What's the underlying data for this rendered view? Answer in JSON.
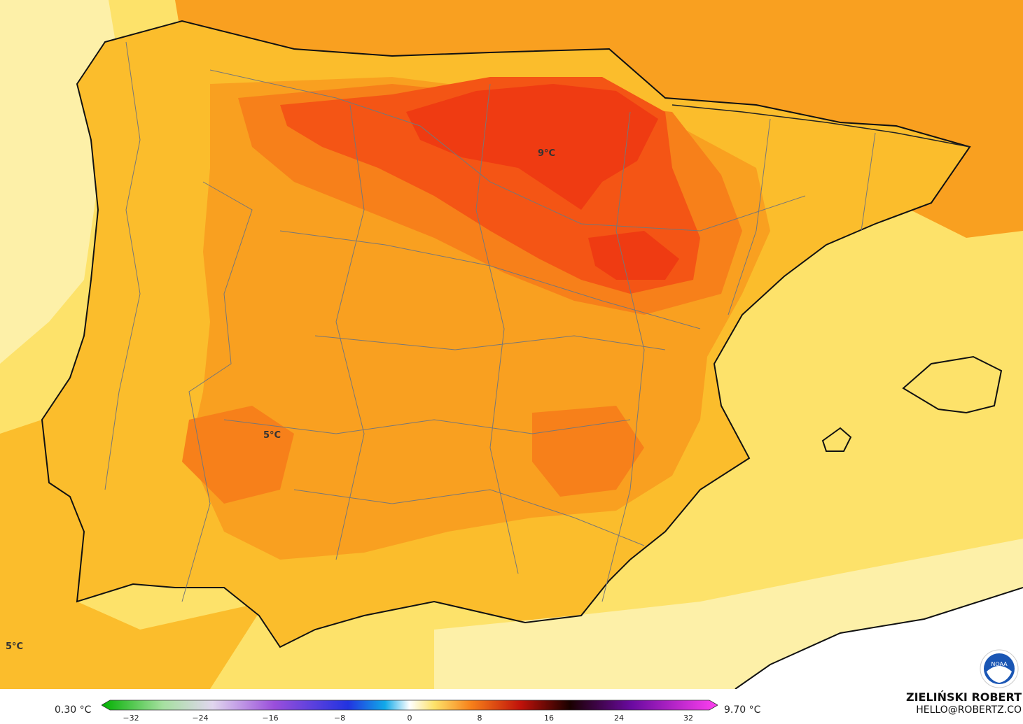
{
  "map": {
    "labels": {
      "max": "9°C",
      "mid": "5°C",
      "edge": "5°C"
    }
  },
  "colorbar": {
    "min_label": "0.30 °C",
    "max_label": "9.70 °C",
    "ticks": [
      "−32",
      "−24",
      "−16",
      "−8",
      "0",
      "8",
      "16",
      "24",
      "32"
    ]
  },
  "author": {
    "name": "ZIELIŃSKI ROBERT",
    "email": "HELLO@ROBERTZ.CO"
  },
  "logo": {
    "icon": "noaa-logo-icon",
    "text": "NOAA"
  },
  "colors": {
    "sea": "#fde26a",
    "land_base": "#fbbd2c",
    "warm": "#f9a020",
    "warmer": "#f7801a",
    "hot": "#f45515",
    "hottest": "#ef3b12",
    "pale": "#fdf0a8",
    "coast": "#111111",
    "borders": "#777777"
  }
}
